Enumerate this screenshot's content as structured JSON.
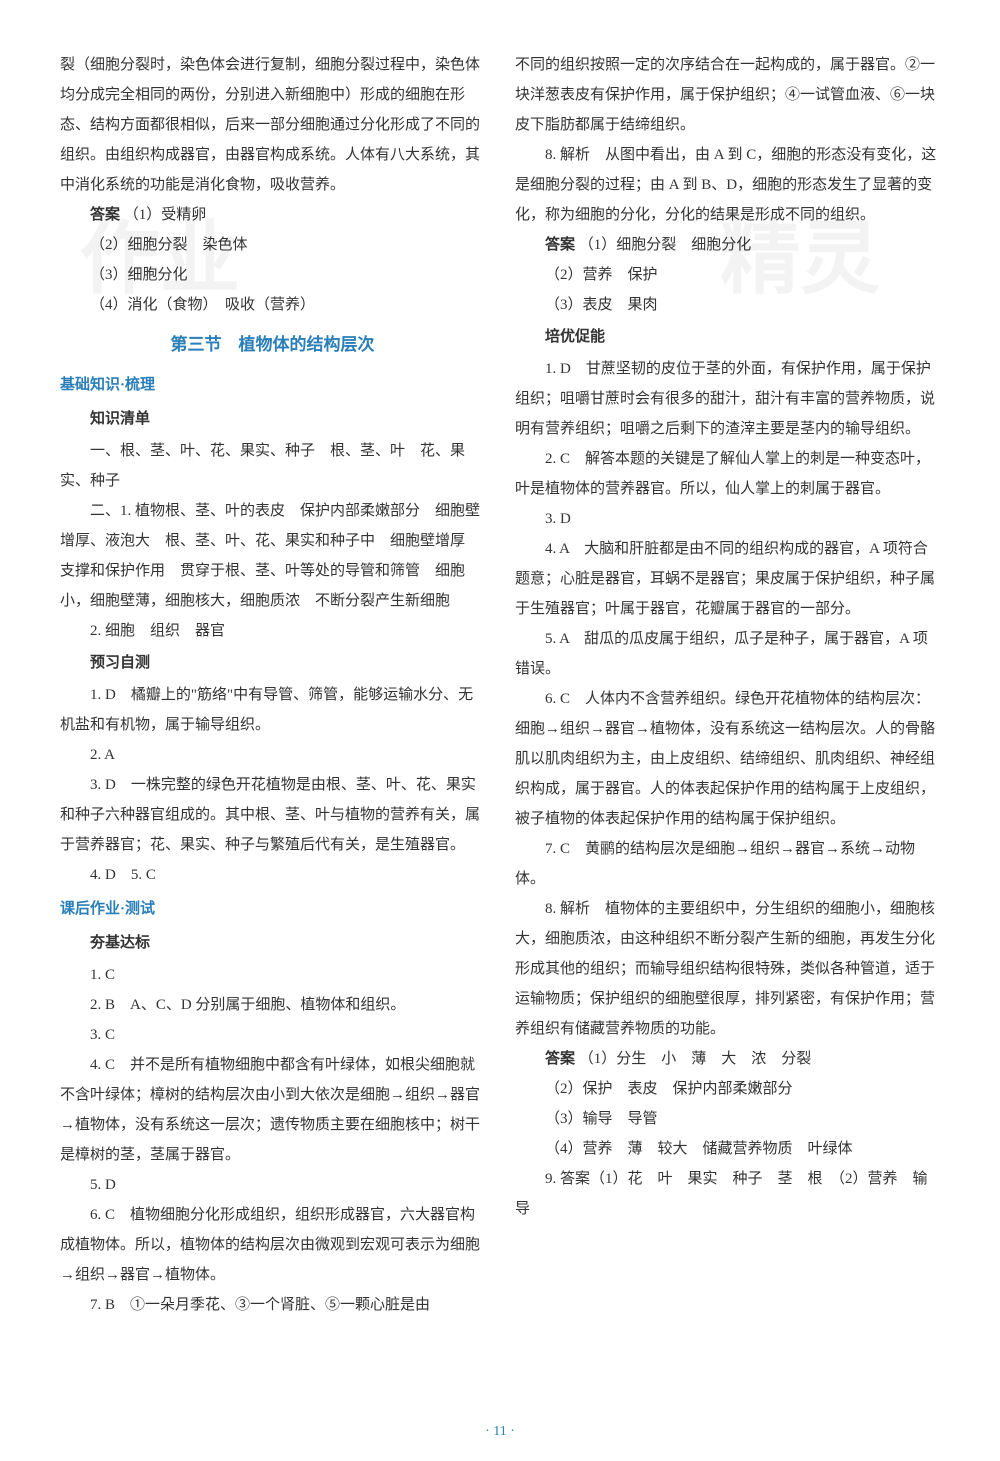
{
  "watermarks": {
    "left": "作业",
    "right": "精灵"
  },
  "page_number": "· 11 ·",
  "left_column": {
    "intro_para": "裂（细胞分裂时，染色体会进行复制，细胞分裂过程中，染色体均分成完全相同的两份，分别进入新细胞中）形成的细胞在形态、结构方面都很相似，后来一部分细胞通过分化形成了不同的组织。由组织构成器官，由器官构成系统。人体有八大系统，其中消化系统的功能是消化食物，吸收营养。",
    "answers_label": "答案",
    "answers": {
      "a1": "（1）受精卵",
      "a2": "（2）细胞分裂　染色体",
      "a3": "（3）细胞分化",
      "a4": "（4）消化（食物）　吸收（营养）"
    },
    "section_title": "第三节　植物体的结构层次",
    "basic_knowledge_heading": "基础知识·梳理",
    "knowledge_list_heading": "知识清单",
    "knowledge": {
      "k1": "一、根、茎、叶、花、果实、种子　根、茎、叶　花、果实、种子",
      "k2_1": "二、1. 植物根、茎、叶的表皮　保护内部柔嫩部分　细胞壁增厚、液泡大　根、茎、叶、花、果实和种子中　细胞壁增厚　支撑和保护作用　贯穿于根、茎、叶等处的导管和筛管　细胞小，细胞壁薄，细胞核大，细胞质浓　不断分裂产生新细胞",
      "k2_2": "2. 细胞　组织　器官"
    },
    "preview_test_heading": "预习自测",
    "preview": {
      "p1": "1. D　橘瓣上的\"筋络\"中有导管、筛管，能够运输水分、无机盐和有机物，属于输导组织。",
      "p2": "2. A",
      "p3": "3. D　一株完整的绿色开花植物是由根、茎、叶、花、果实和种子六种器官组成的。其中根、茎、叶与植物的营养有关，属于营养器官；花、果实、种子与繁殖后代有关，是生殖器官。",
      "p4": "4. D　5. C"
    },
    "homework_heading": "课后作业·测试",
    "standard_heading": "夯基达标",
    "standard": {
      "s1": "1. C",
      "s2": "2. B　A、C、D 分别属于细胞、植物体和组织。",
      "s3": "3. C",
      "s4": "4. C　并不是所有植物细胞中都含有叶绿体，如根尖细胞就不含叶绿体；樟树的结构层次由小到大依次是细胞→组织→器官→植物体，没有系统这一层次；遗传物质主要在细胞核中；树干是樟树的茎，茎属于器官。",
      "s5": "5. D",
      "s6": "6. C　植物细胞分化形成组织，组织形成器官，六大器官构成植物体。所以，植物体的结构层次由微观到宏观可表示为细胞→组织→器官→植物体。",
      "s7": "7. B　①一朵月季花、③一个肾脏、⑤一颗心脏是由"
    }
  },
  "right_column": {
    "continuation": "不同的组织按照一定的次序结合在一起构成的，属于器官。②一块洋葱表皮有保护作用，属于保护组织；④一试管血液、⑥一块皮下脂肪都属于结缔组织。",
    "item8": "8. 解析　从图中看出，由 A 到 C，细胞的形态没有变化，这是细胞分裂的过程；由 A 到 B、D，细胞的形态发生了显著的变化，称为细胞的分化，分化的结果是形成不同的组织。",
    "item8_answers_label": "答案",
    "item8_answers": {
      "a1": "（1）细胞分裂　细胞分化",
      "a2": "（2）营养　保护",
      "a3": "（3）表皮　果肉"
    },
    "promotion_heading": "培优促能",
    "promotion": {
      "p1": "1. D　甘蔗坚韧的皮位于茎的外面，有保护作用，属于保护组织；咀嚼甘蔗时会有很多的甜汁，甜汁有丰富的营养物质，说明有营养组织；咀嚼之后剩下的渣滓主要是茎内的输导组织。",
      "p2": "2. C　解答本题的关键是了解仙人掌上的刺是一种变态叶，叶是植物体的营养器官。所以，仙人掌上的刺属于器官。",
      "p3": "3. D",
      "p4": "4. A　大脑和肝脏都是由不同的组织构成的器官，A 项符合题意；心脏是器官，耳蜗不是器官；果皮属于保护组织，种子属于生殖器官；叶属于器官，花瓣属于器官的一部分。",
      "p5": "5. A　甜瓜的瓜皮属于组织，瓜子是种子，属于器官，A 项错误。",
      "p6": "6. C　人体内不含营养组织。绿色开花植物体的结构层次：细胞→组织→器官→植物体，没有系统这一结构层次。人的骨骼肌以肌肉组织为主，由上皮组织、结缔组织、肌肉组织、神经组织构成，属于器官。人的体表起保护作用的结构属于上皮组织，被子植物的体表起保护作用的结构属于保护组织。",
      "p7": "7. C　黄鹂的结构层次是细胞→组织→器官→系统→动物体。",
      "p8": "8. 解析　植物体的主要组织中，分生组织的细胞小，细胞核大，细胞质浓，由这种组织不断分裂产生新的细胞，再发生分化形成其他的组织；而输导组织结构很特殊，类似各种管道，适于运输物质；保护组织的细胞壁很厚，排列紧密，有保护作用；营养组织有储藏营养物质的功能。"
    },
    "p8_answers_label": "答案",
    "p8_answers": {
      "a1": "（1）分生　小　薄　大　浓　分裂",
      "a2": "（2）保护　表皮　保护内部柔嫩部分",
      "a3": "（3）输导　导管",
      "a4": "（4）营养　薄　较大　储藏营养物质　叶绿体"
    },
    "item9": "9. 答案（1）花　叶　果实　种子　茎　根　（2）营养　输导"
  }
}
